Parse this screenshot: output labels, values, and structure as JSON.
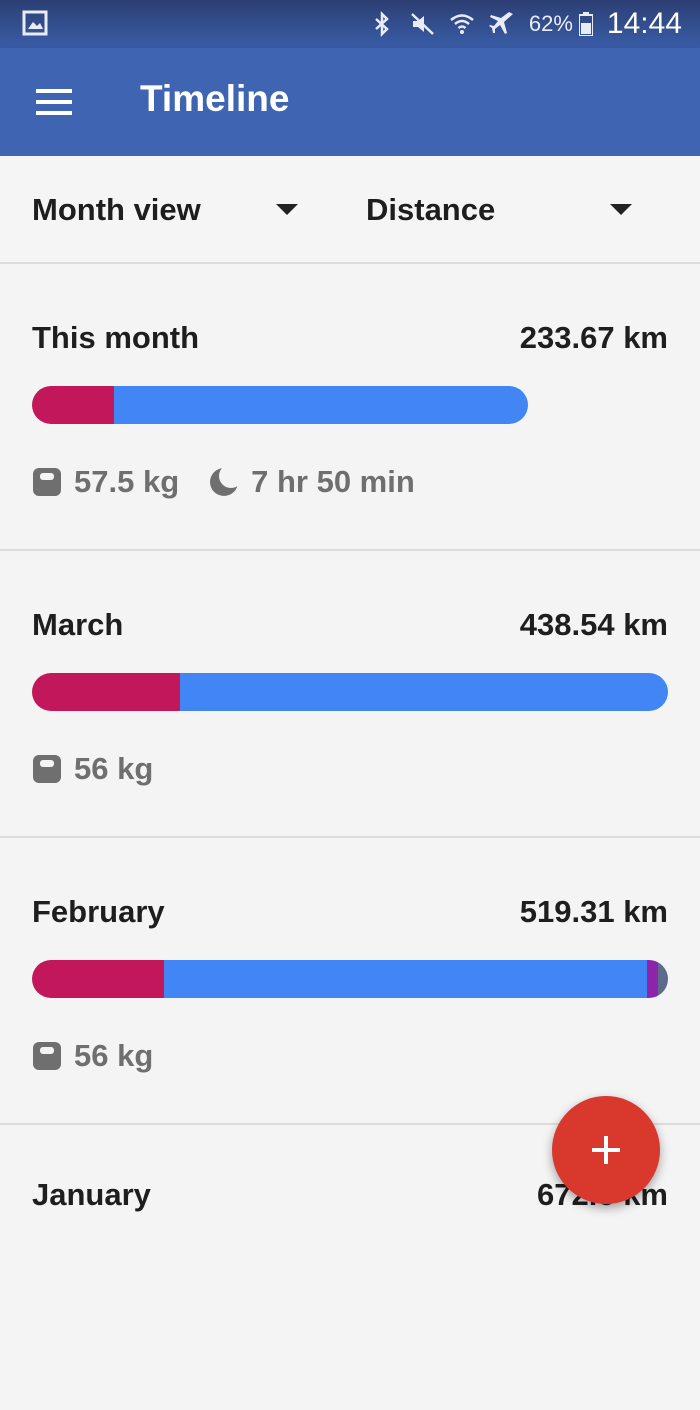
{
  "statusbar": {
    "battery_pct": "62%",
    "time": "14:44",
    "icons": [
      "gallery-icon",
      "bluetooth-icon",
      "mute-icon",
      "wifi-icon",
      "airplane-icon",
      "battery-icon"
    ]
  },
  "appbar": {
    "title": "Timeline",
    "menu_icon": "hamburger-menu-icon"
  },
  "filters": {
    "view": "Month view",
    "metric": "Distance"
  },
  "cards": [
    {
      "month": "This month",
      "distance": "233.67 km",
      "bar_fraction_of_max": 0.78,
      "segments": [
        {
          "color": "#c2185b",
          "fraction": 0.165
        },
        {
          "color": "#4285f4",
          "fraction": 0.835
        }
      ],
      "weight": "57.5 kg",
      "sleep": "7 hr 50 min"
    },
    {
      "month": "March",
      "distance": "438.54 km",
      "bar_fraction_of_max": 1.0,
      "segments": [
        {
          "color": "#c2185b",
          "fraction": 0.232
        },
        {
          "color": "#4285f4",
          "fraction": 0.768
        }
      ],
      "weight": "56 kg"
    },
    {
      "month": "February",
      "distance": "519.31 km",
      "bar_fraction_of_max": 1.0,
      "segments": [
        {
          "color": "#c2185b",
          "fraction": 0.207
        },
        {
          "color": "#4285f4",
          "fraction": 0.76
        },
        {
          "color": "#8e24aa",
          "fraction": 0.018
        },
        {
          "color": "#5c6b8a",
          "fraction": 0.015
        }
      ],
      "weight": "56 kg"
    },
    {
      "month": "January",
      "distance": "672.6 km"
    }
  ],
  "fab": {
    "icon": "plus-icon"
  },
  "colors": {
    "appbar": "#3f65b2",
    "walking": "#c2185b",
    "running": "#4285f4",
    "fab": "#d8392c"
  }
}
